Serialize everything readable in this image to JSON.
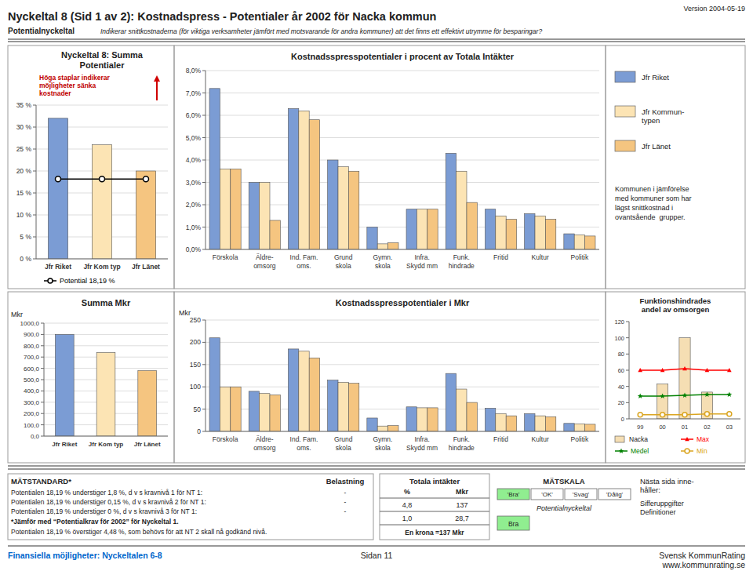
{
  "title": "Nyckeltal 8 (Sid 1 av 2): Kostnadspress - Potentialer år 2002 för Nacka kommun",
  "subtitle": "Potentialnyckeltal",
  "description": "Indikerar snittkostnaderna (för viktiga verksamheter jämfört med motsvarande för andra kommuner) att det finns ett effektivt utrymme för besparingar?",
  "version": "Version 2004-05-19",
  "chart_data": [
    {
      "type": "bar",
      "title": "Nyckeltal 8: Summa\nPotentialer",
      "categories": [
        "Jfr Riket",
        "Jfr Kom typ",
        "Jfr Länet"
      ],
      "series": [
        {
          "type": "bar",
          "values": [
            32,
            26,
            20
          ],
          "colors": [
            "#7b9cd4",
            "#fce4b4",
            "#f5c580"
          ]
        },
        {
          "type": "line",
          "name": "Potential 18,19 %",
          "values": [
            18.19,
            18.19,
            18.19
          ],
          "color": "#000000",
          "marker": "circle"
        }
      ],
      "ylim": [
        0,
        35
      ],
      "yticks": [
        {
          "value": 0,
          "label": "0 %"
        },
        {
          "value": 5,
          "label": "5 %"
        },
        {
          "value": 10,
          "label": "10 %"
        },
        {
          "value": 15,
          "label": "15 %"
        },
        {
          "value": 20,
          "label": "20 %"
        },
        {
          "value": 25,
          "label": "25 %"
        },
        {
          "value": 30,
          "label": "30 %"
        },
        {
          "value": 35,
          "label": "35 %"
        }
      ],
      "grid": true,
      "legend": "bottom",
      "annotations": [
        "Höga staplar indikerar\nmöjligheter sänka\nkostnader"
      ]
    },
    {
      "type": "bar",
      "title": "Kostnadsspresspotentialer i procent av Totala Intäkter",
      "categories": [
        "Förskola",
        "Äldre-\nomsorg",
        "Ind. Fam.\noms.",
        "Grund\nskola",
        "Gymn.\nskola",
        "Infra.\nSkydd mm",
        "Funk.\nhindrade",
        "Fritid",
        "Kultur",
        "Politik"
      ],
      "series": [
        {
          "name": "Jfr Riket",
          "color": "#7b9cd4",
          "values": [
            7.2,
            3.0,
            6.3,
            4.0,
            1.0,
            1.8,
            4.3,
            1.8,
            1.6,
            0.7
          ]
        },
        {
          "name": "Jfr Kommun-\ntypen",
          "color": "#fce4b4",
          "values": [
            3.6,
            3.0,
            6.2,
            3.7,
            0.25,
            1.8,
            3.5,
            1.5,
            1.5,
            0.65
          ]
        },
        {
          "name": "Jfr Länet",
          "color": "#f5c580",
          "values": [
            3.6,
            1.3,
            5.8,
            3.5,
            0.3,
            1.8,
            2.1,
            1.35,
            1.35,
            0.6
          ]
        }
      ],
      "ylim": [
        0,
        8
      ],
      "yticks": [
        {
          "value": 0,
          "label": "0,0%"
        },
        {
          "value": 1,
          "label": "1,0%"
        },
        {
          "value": 2,
          "label": "2,0%"
        },
        {
          "value": 3,
          "label": "3,0%"
        },
        {
          "value": 4,
          "label": "4,0%"
        },
        {
          "value": 5,
          "label": "5,0%"
        },
        {
          "value": 6,
          "label": "6,0%"
        },
        {
          "value": 7,
          "label": "7,0%"
        },
        {
          "value": 8,
          "label": "8,0%"
        }
      ],
      "grid": true,
      "legend": "right",
      "annotations": [
        "Kommunen i jämförelse\nmed kommuner som har\nlägst snittkostnad i\novantsående  grupper."
      ]
    },
    {
      "type": "bar",
      "title": "Summa Mkr",
      "ylabel": "Mkr",
      "categories": [
        "Jfr Riket",
        "Jfr Kom typ",
        "Jfr Länet"
      ],
      "series": [
        {
          "type": "bar",
          "values": [
            900,
            740,
            580
          ],
          "colors": [
            "#7b9cd4",
            "#fce4b4",
            "#f5c580"
          ]
        }
      ],
      "ylim": [
        0,
        1000
      ],
      "yticks": [
        {
          "value": 0,
          "label": "0,0"
        },
        {
          "value": 100,
          "label": "100,0"
        },
        {
          "value": 200,
          "label": "200,0"
        },
        {
          "value": 300,
          "label": "300,0"
        },
        {
          "value": 400,
          "label": "400,0"
        },
        {
          "value": 500,
          "label": "500,0"
        },
        {
          "value": 600,
          "label": "600,0"
        },
        {
          "value": 700,
          "label": "700,0"
        },
        {
          "value": 800,
          "label": "800,0"
        },
        {
          "value": 900,
          "label": "900,0"
        },
        {
          "value": 1000,
          "label": "1000,0"
        }
      ],
      "grid": true
    },
    {
      "type": "bar",
      "title": "Kostnadsspresspotentialer i Mkr",
      "ylabel": "Mkr",
      "categories": [
        "Förskola",
        "Äldre-\nomsorg",
        "Ind. Fam.\noms.",
        "Grund\nskola",
        "Gymn.\nskola",
        "Infra.\nSkydd mm",
        "Funk.\nhindrade",
        "Fritid",
        "Kultur",
        "Politik"
      ],
      "series": [
        {
          "color": "#7b9cd4",
          "values": [
            210,
            90,
            185,
            115,
            30,
            55,
            130,
            52,
            40,
            18
          ]
        },
        {
          "color": "#fce4b4",
          "values": [
            100,
            85,
            180,
            110,
            12,
            53,
            95,
            40,
            35,
            17
          ]
        },
        {
          "color": "#f5c580",
          "values": [
            100,
            82,
            165,
            108,
            13,
            53,
            65,
            35,
            33,
            16
          ]
        }
      ],
      "ylim": [
        0,
        250
      ],
      "yticks": [
        0,
        50,
        100,
        150,
        200,
        250
      ],
      "grid": true
    },
    {
      "type": "bar",
      "title": "Funktionshindrades\nandel av omsorgen",
      "categories": [
        "99",
        "00",
        "01",
        "02",
        "03"
      ],
      "series": [
        {
          "name": "Nacka",
          "type": "bar",
          "color": "#f5deb3",
          "values": [
            0,
            43,
            100,
            33,
            0
          ]
        },
        {
          "name": "Max",
          "type": "line",
          "color": "#ff0000",
          "marker": "triangle",
          "values": [
            60,
            60,
            62,
            60,
            60
          ]
        },
        {
          "name": "Medel",
          "type": "line",
          "color": "#008000",
          "marker": "star",
          "values": [
            28,
            28,
            29,
            30,
            30
          ]
        },
        {
          "name": "Min",
          "type": "line",
          "color": "#daa520",
          "marker": "circle",
          "values": [
            5,
            5,
            5,
            6,
            6
          ]
        }
      ],
      "ylim": [
        0,
        120
      ],
      "yticks": [
        0,
        20,
        40,
        60,
        80,
        100,
        120
      ],
      "grid": false,
      "legend": "bottom"
    }
  ],
  "measure_standard": {
    "title": "MÄTSTANDARD*",
    "column": "Belastning",
    "rows": [
      {
        "text": "Potentialen 18,19 % understiger 1,8 %, d v s kravnivå 1 för NT 1:",
        "value": "-"
      },
      {
        "text": "Potentialen 18,19 % understiger 0,15 %, d v s kravnivå 2 för NT 1:",
        "value": "-"
      },
      {
        "text": "Potentialen 18,19 % understiger 0 %, d v s kravnivå 3 för NT 1:",
        "value": "-"
      }
    ],
    "notes": [
      "*Jämför med “Potentialkrav för 2002” för Nyckeltal 1.",
      "Potentialen 18,19 % överstiger 4,48 %, som behövs för att NT 2 skall nå godkänd nivå."
    ]
  },
  "income_table": {
    "title": "Totala intäkter",
    "columns": [
      "%",
      "Mkr"
    ],
    "rows": [
      [
        "4,8",
        "137"
      ],
      [
        "1,0",
        "28,7"
      ]
    ],
    "note": "En krona =137 Mkr"
  },
  "scale": {
    "title": "MÄTSKALA",
    "levels": [
      {
        "label": "'Bra'",
        "color": "#90ee90"
      },
      {
        "label": "'OK'",
        "color": "#ffffff"
      },
      {
        "label": "'Svag'",
        "color": "#ffffff"
      },
      {
        "label": "'Dålig'",
        "color": "#ffffff"
      }
    ],
    "label": "Potentialnyckeltal",
    "rating": {
      "label": "Bra",
      "color": "#90ee90"
    }
  },
  "next_page": {
    "title": "Nästa sida inne-\nhåller:",
    "items": "Sifferuppgifter\nDefinitioner"
  },
  "footer": {
    "left": "Finansiella möjligheter: Nyckeltalen 6-8",
    "center": "Sidan 11",
    "right": "Svensk KommunRating\nwww.kommunrating.se",
    "color": "#0066cc"
  }
}
